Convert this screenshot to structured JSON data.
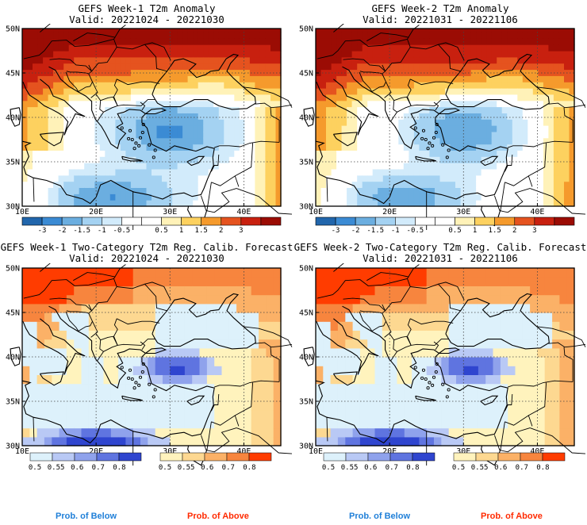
{
  "colors": {
    "anomaly_scale": [
      "#2166ac",
      "#3b8bd4",
      "#6baee0",
      "#a4d2f2",
      "#d2ebfb",
      "#ffffff",
      "#ffffff",
      "#fff2b8",
      "#fdd15f",
      "#f59a2c",
      "#e5531f",
      "#c8200f",
      "#9b0c04"
    ],
    "below_scale": [
      "#ddf1fb",
      "#b9c9f5",
      "#8fa2ec",
      "#5f74e0",
      "#2f45cf"
    ],
    "above_scale": [
      "#fff3bd",
      "#fdd891",
      "#fbb167",
      "#f7853e",
      "#ff3c00"
    ],
    "below_text": "#1f7fd8",
    "above_text": "#ff2a00"
  },
  "panels": {
    "tl": {
      "title": "GEFS Week-1 T2m Anomaly",
      "valid": "Valid: 20221024 - 20221030"
    },
    "tr": {
      "title": "GEFS Week-2 T2m Anomaly",
      "valid": "Valid: 20221031 - 20221106"
    },
    "bl": {
      "title": "GEFS Week-1 Two-Category T2m Reg. Calib. Forecast",
      "valid": "Valid: 20221024 - 20221030"
    },
    "br": {
      "title": "GEFS Week-2 Two-Category T2m Reg. Calib. Forecast",
      "valid": "Valid: 20221031 - 20221106"
    }
  },
  "axes": {
    "lat_labels": [
      "50N",
      "45N",
      "40N",
      "35N",
      "30N"
    ],
    "lon_labels": [
      "10E",
      "20E",
      "30E",
      "40E"
    ]
  },
  "anomaly_colorbar_labels": [
    "-3",
    "-2",
    "-1.5",
    "-1",
    "-0.5",
    "0.5",
    "1",
    "1.5",
    "2",
    "3"
  ],
  "prob_colorbar_labels": [
    "0.5",
    "0.55",
    "0.6",
    "0.7",
    "0.8"
  ],
  "footer": {
    "below": "Prob. of Below",
    "above": "Prob. of Above"
  }
}
